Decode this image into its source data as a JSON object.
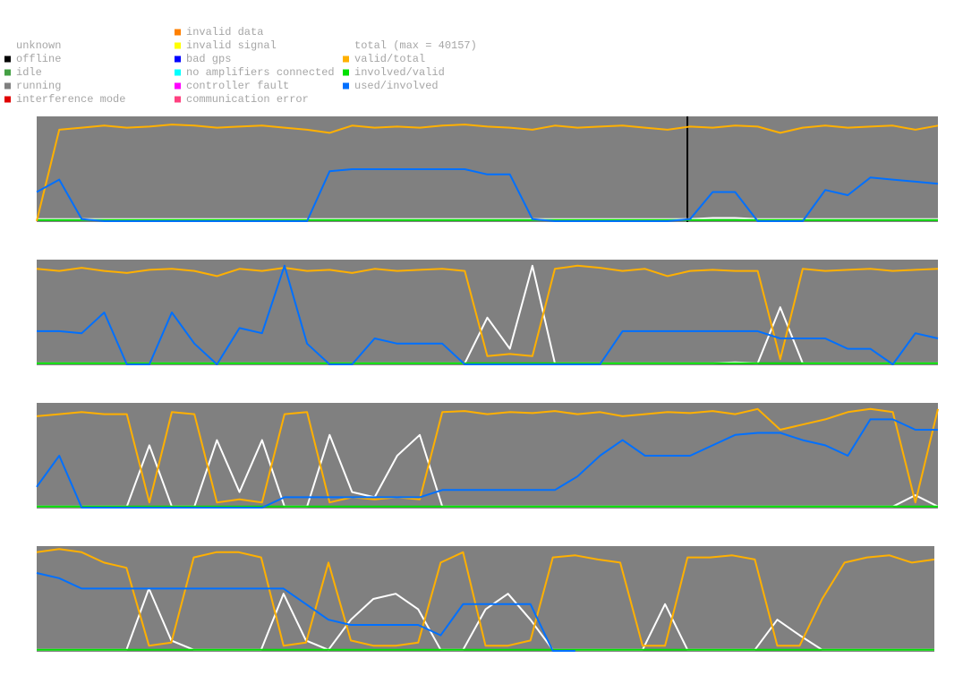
{
  "legend": {
    "columns": [
      {
        "items": [
          {
            "label": "unknown"
          },
          {
            "label": "offline",
            "color": "#000000"
          },
          {
            "label": "idle",
            "color": "#44a044"
          },
          {
            "label": "running",
            "color": "#808080"
          },
          {
            "label": "interference mode",
            "color": "#e00000"
          }
        ]
      },
      {
        "items": [
          {
            "label": "invalid data",
            "color": "#ff8000"
          },
          {
            "label": "invalid signal",
            "color": "#ffff00"
          },
          {
            "label": "bad gps",
            "color": "#0000ff"
          },
          {
            "label": "no amplifiers connected",
            "color": "#00ffff"
          },
          {
            "label": "controller fault",
            "color": "#ff00ff"
          },
          {
            "label": "communication error",
            "color": "#ff4080"
          }
        ]
      },
      {
        "items": [
          {
            "label": "total (max = 40157)"
          },
          {
            "label": "valid/total",
            "color": "#ffb000"
          },
          {
            "label": "involved/valid",
            "color": "#00e000"
          },
          {
            "label": "used/involved",
            "color": "#0070ff"
          }
        ]
      }
    ]
  },
  "chart_data": [
    {
      "type": "line",
      "background": "#808080",
      "xlim": [
        0,
        100
      ],
      "ylim": [
        0,
        1
      ],
      "x": [
        0,
        2.5,
        5,
        7.5,
        10,
        12.5,
        15,
        17.5,
        20,
        22.5,
        25,
        27.5,
        30,
        32.5,
        35,
        37.5,
        40,
        42.5,
        45,
        47.5,
        50,
        52.5,
        55,
        57.5,
        60,
        62.5,
        65,
        67.5,
        70,
        72.5,
        75,
        77.5,
        80,
        82.5,
        85,
        87.5,
        90,
        92.5,
        95,
        97.5,
        100
      ],
      "markers": [
        {
          "x": 72.2,
          "color": "#000000"
        }
      ],
      "series": [
        {
          "color": "#ffffff",
          "values": [
            0.02,
            0.02,
            0.02,
            0.02,
            0.02,
            0.02,
            0.02,
            0.02,
            0.02,
            0.02,
            0.02,
            0.02,
            0.02,
            0.02,
            0.02,
            0.02,
            0.02,
            0.02,
            0.02,
            0.02,
            0.02,
            0.02,
            0.02,
            0.02,
            0.02,
            0.02,
            0.02,
            0.02,
            0.02,
            0.02,
            0.03,
            0.03,
            0.02,
            0.02,
            0.02,
            0.02,
            0.02,
            0.02,
            0.02,
            0.02,
            0.02
          ]
        },
        {
          "color": "#00e000",
          "values": [
            0.01,
            0.01,
            0.01,
            0.01,
            0.01,
            0.01,
            0.01,
            0.01,
            0.01,
            0.01,
            0.01,
            0.01,
            0.01,
            0.01,
            0.01,
            0.01,
            0.01,
            0.01,
            0.01,
            0.01,
            0.01,
            0.01,
            0.01,
            0.01,
            0.01,
            0.01,
            0.01,
            0.01,
            0.01,
            0.01,
            0.01,
            0.01,
            0.01,
            0.01,
            0.01,
            0.01,
            0.01,
            0.01,
            0.01,
            0.01,
            0.01
          ]
        },
        {
          "color": "#ffb000",
          "values": [
            0.0,
            0.88,
            0.9,
            0.92,
            0.9,
            0.91,
            0.93,
            0.92,
            0.9,
            0.91,
            0.92,
            0.9,
            0.88,
            0.85,
            0.92,
            0.9,
            0.91,
            0.9,
            0.92,
            0.93,
            0.91,
            0.9,
            0.88,
            0.92,
            0.9,
            0.91,
            0.92,
            0.9,
            0.88,
            0.91,
            0.9,
            0.92,
            0.91,
            0.85,
            0.9,
            0.92,
            0.9,
            0.91,
            0.92,
            0.88,
            0.92
          ]
        },
        {
          "color": "#0070ff",
          "values": [
            0.28,
            0.4,
            0.02,
            0,
            0,
            0,
            0,
            0,
            0,
            0,
            0,
            0,
            0,
            0.48,
            0.5,
            0.5,
            0.5,
            0.5,
            0.5,
            0.5,
            0.45,
            0.45,
            0.02,
            0,
            0,
            0,
            0,
            0,
            0,
            0.02,
            0.28,
            0.28,
            0,
            0,
            0,
            0.3,
            0.25,
            0.42,
            0.4,
            0.38,
            0.36
          ]
        }
      ]
    },
    {
      "type": "line",
      "background": "#808080",
      "xlim": [
        0,
        100
      ],
      "ylim": [
        0,
        1
      ],
      "x": [
        0,
        2.5,
        5,
        7.5,
        10,
        12.5,
        15,
        17.5,
        20,
        22.5,
        25,
        27.5,
        30,
        32.5,
        35,
        37.5,
        40,
        42.5,
        45,
        47.5,
        50,
        52.5,
        55,
        57.5,
        60,
        62.5,
        65,
        67.5,
        70,
        72.5,
        75,
        77.5,
        80,
        82.5,
        85,
        87.5,
        90,
        92.5,
        95,
        97.5,
        100
      ],
      "series": [
        {
          "color": "#ffffff",
          "values": [
            0.01,
            0.01,
            0.01,
            0.01,
            0.01,
            0.01,
            0.01,
            0.01,
            0.01,
            0.01,
            0.01,
            0.01,
            0.01,
            0.01,
            0.01,
            0.01,
            0.01,
            0.01,
            0.01,
            0.01,
            0.45,
            0.15,
            0.95,
            0.01,
            0.01,
            0.01,
            0.01,
            0.01,
            0.01,
            0.01,
            0.01,
            0.02,
            0.01,
            0.55,
            0.01,
            0.01,
            0.01,
            0.01,
            0.01,
            0.01,
            0.01
          ]
        },
        {
          "color": "#00e000",
          "values": [
            0.01,
            0.01,
            0.01,
            0.01,
            0.01,
            0.01,
            0.01,
            0.01,
            0.01,
            0.01,
            0.01,
            0.01,
            0.01,
            0.01,
            0.01,
            0.01,
            0.01,
            0.01,
            0.01,
            0.01,
            0.01,
            0.01,
            0.01,
            0.01,
            0.01,
            0.01,
            0.01,
            0.01,
            0.01,
            0.01,
            0.01,
            0.01,
            0.01,
            0.01,
            0.01,
            0.01,
            0.01,
            0.01,
            0.01,
            0.01,
            0.01
          ]
        },
        {
          "color": "#ffb000",
          "values": [
            0.92,
            0.9,
            0.93,
            0.9,
            0.88,
            0.91,
            0.92,
            0.9,
            0.85,
            0.92,
            0.9,
            0.93,
            0.9,
            0.91,
            0.88,
            0.92,
            0.9,
            0.91,
            0.92,
            0.9,
            0.08,
            0.1,
            0.08,
            0.92,
            0.95,
            0.93,
            0.9,
            0.92,
            0.85,
            0.9,
            0.91,
            0.9,
            0.9,
            0.05,
            0.92,
            0.9,
            0.91,
            0.92,
            0.9,
            0.91,
            0.92
          ]
        },
        {
          "color": "#0070ff",
          "values": [
            0.32,
            0.32,
            0.3,
            0.5,
            0,
            0,
            0.5,
            0.2,
            0,
            0.35,
            0.3,
            0.95,
            0.2,
            0,
            0,
            0.25,
            0.2,
            0.2,
            0.2,
            0,
            0,
            0,
            0,
            0,
            0,
            0,
            0.32,
            0.32,
            0.32,
            0.32,
            0.32,
            0.32,
            0.32,
            0.25,
            0.25,
            0.25,
            0.15,
            0.15,
            0,
            0.3,
            0.25
          ]
        }
      ]
    },
    {
      "type": "line",
      "background": "#808080",
      "xlim": [
        0,
        100
      ],
      "ylim": [
        0,
        1
      ],
      "x": [
        0,
        2.5,
        5,
        7.5,
        10,
        12.5,
        15,
        17.5,
        20,
        22.5,
        25,
        27.5,
        30,
        32.5,
        35,
        37.5,
        40,
        42.5,
        45,
        47.5,
        50,
        52.5,
        55,
        57.5,
        60,
        62.5,
        65,
        67.5,
        70,
        72.5,
        75,
        77.5,
        80,
        82.5,
        85,
        87.5,
        90,
        92.5,
        95,
        97.5,
        100
      ],
      "series": [
        {
          "color": "#ffffff",
          "values": [
            0.01,
            0.01,
            0.01,
            0.01,
            0.01,
            0.6,
            0.01,
            0.01,
            0.65,
            0.15,
            0.65,
            0.01,
            0.01,
            0.7,
            0.15,
            0.1,
            0.5,
            0.7,
            0.01,
            0.01,
            0.01,
            0.01,
            0.01,
            0.01,
            0.01,
            0.01,
            0.01,
            0.01,
            0.01,
            0.01,
            0.01,
            0.01,
            0.01,
            0.01,
            0.01,
            0.01,
            0.01,
            0.01,
            0.01,
            0.12,
            0.01
          ]
        },
        {
          "color": "#00e000",
          "values": [
            0.01,
            0.01,
            0.01,
            0.01,
            0.01,
            0.01,
            0.01,
            0.01,
            0.01,
            0.01,
            0.01,
            0.01,
            0.01,
            0.01,
            0.01,
            0.01,
            0.01,
            0.01,
            0.01,
            0.01,
            0.01,
            0.01,
            0.01,
            0.01,
            0.01,
            0.01,
            0.01,
            0.01,
            0.01,
            0.01,
            0.01,
            0.01,
            0.01,
            0.01,
            0.01,
            0.01,
            0.01,
            0.01,
            0.01,
            0.01,
            0.01
          ]
        },
        {
          "color": "#ffb000",
          "values": [
            0.88,
            0.9,
            0.92,
            0.9,
            0.9,
            0.05,
            0.92,
            0.9,
            0.05,
            0.08,
            0.05,
            0.9,
            0.92,
            0.05,
            0.1,
            0.08,
            0.1,
            0.08,
            0.92,
            0.93,
            0.9,
            0.92,
            0.91,
            0.93,
            0.9,
            0.92,
            0.88,
            0.9,
            0.92,
            0.91,
            0.93,
            0.9,
            0.95,
            0.75,
            0.8,
            0.85,
            0.92,
            0.95,
            0.92,
            0.05,
            0.95
          ]
        },
        {
          "color": "#0070ff",
          "values": [
            0.2,
            0.5,
            0,
            0,
            0,
            0,
            0,
            0,
            0,
            0,
            0,
            0.1,
            0.1,
            0.1,
            0.1,
            0.1,
            0.1,
            0.1,
            0.17,
            0.17,
            0.17,
            0.17,
            0.17,
            0.17,
            0.3,
            0.5,
            0.65,
            0.5,
            0.5,
            0.5,
            0.6,
            0.7,
            0.72,
            0.72,
            0.65,
            0.6,
            0.5,
            0.85,
            0.85,
            0.75,
            0.75
          ]
        }
      ]
    },
    {
      "type": "line",
      "background": "#808080",
      "xlim": [
        0,
        100
      ],
      "ylim": [
        0,
        1
      ],
      "x": [
        0,
        2.5,
        5,
        7.5,
        10,
        12.5,
        15,
        17.5,
        20,
        22.5,
        25,
        27.5,
        30,
        32.5,
        35,
        37.5,
        40,
        42.5,
        45,
        47.5,
        50,
        52.5,
        55,
        57.5,
        60,
        62.5,
        65,
        67.5,
        70,
        72.5,
        75,
        77.5,
        80,
        82.5,
        85,
        87.5,
        90,
        92.5,
        95,
        97.5,
        100
      ],
      "series": [
        {
          "color": "#ffffff",
          "values": [
            0.01,
            0.01,
            0.01,
            0.01,
            0.01,
            0.6,
            0.1,
            0.01,
            0.01,
            0.01,
            0.01,
            0.55,
            0.1,
            0.01,
            0.3,
            0.5,
            0.55,
            0.4,
            0.01,
            0.01,
            0.4,
            0.55,
            0.3,
            0.01,
            0.01,
            0.01,
            0.01,
            0.01,
            0.45,
            0.01,
            0.01,
            0.01,
            0.01,
            0.3,
            0.15,
            0.01,
            0.01,
            0.01,
            0.01,
            0.01,
            0.01
          ]
        },
        {
          "color": "#00e000",
          "values": [
            0.01,
            0.01,
            0.01,
            0.01,
            0.01,
            0.01,
            0.01,
            0.01,
            0.01,
            0.01,
            0.01,
            0.01,
            0.01,
            0.01,
            0.01,
            0.01,
            0.01,
            0.01,
            0.01,
            0.01,
            0.01,
            0.01,
            0.01,
            0.01,
            0.01,
            0.01,
            0.01,
            0.01,
            0.01,
            0.01,
            0.01,
            0.01,
            0.01,
            0.01,
            0.01,
            0.01,
            0.01,
            0.01,
            0.01,
            0.01,
            0.01
          ]
        },
        {
          "color": "#ffb000",
          "values": [
            0.95,
            0.98,
            0.95,
            0.85,
            0.8,
            0.05,
            0.08,
            0.9,
            0.95,
            0.95,
            0.9,
            0.05,
            0.08,
            0.85,
            0.1,
            0.05,
            0.05,
            0.08,
            0.85,
            0.95,
            0.05,
            0.05,
            0.1,
            0.9,
            0.92,
            0.88,
            0.85,
            0.05,
            0.05,
            0.9,
            0.9,
            0.92,
            0.88,
            0.05,
            0.05,
            0.5,
            0.85,
            0.9,
            0.92,
            0.85,
            0.88
          ]
        },
        {
          "color": "#0070ff",
          "values": [
            0.75,
            0.7,
            0.6,
            0.6,
            0.6,
            0.6,
            0.6,
            0.6,
            0.6,
            0.6,
            0.6,
            0.6,
            0.45,
            0.3,
            0.25,
            0.25,
            0.25,
            0.25,
            0.15,
            0.45,
            0.45,
            0.45,
            0.45,
            0,
            0,
            null,
            null,
            null,
            null,
            null,
            null,
            null,
            null,
            null,
            null,
            null,
            null,
            null,
            null,
            null,
            null
          ]
        }
      ]
    }
  ]
}
